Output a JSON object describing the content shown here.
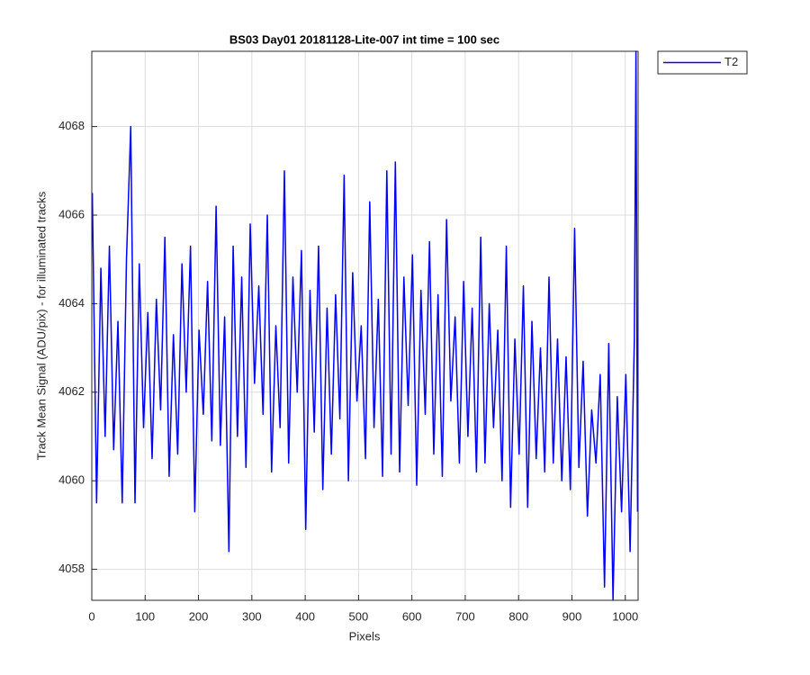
{
  "chart_data": {
    "type": "line",
    "title": "BS03 Day01 20181128-Lite-007 int time = 100 sec",
    "xlabel": "Pixels",
    "ylabel": "Track Mean Signal (ADU/pix) - for illuminated tracks",
    "xlim": [
      0,
      1024
    ],
    "ylim": [
      4057.3,
      4069.7
    ],
    "xticks": [
      0,
      100,
      200,
      300,
      400,
      500,
      600,
      700,
      800,
      900,
      1000
    ],
    "yticks": [
      4058,
      4060,
      4062,
      4064,
      4066,
      4068
    ],
    "grid": true,
    "legend": "northeastoutside",
    "x": [
      1,
      9,
      17,
      25,
      33,
      41,
      49,
      57,
      65,
      73,
      81,
      89,
      97,
      105,
      113,
      121,
      129,
      137,
      145,
      153,
      161,
      169,
      177,
      185,
      193,
      201,
      209,
      217,
      225,
      233,
      241,
      249,
      257,
      265,
      273,
      281,
      289,
      297,
      305,
      313,
      321,
      329,
      337,
      345,
      353,
      361,
      369,
      377,
      385,
      393,
      401,
      409,
      417,
      425,
      433,
      441,
      449,
      457,
      465,
      473,
      481,
      489,
      497,
      505,
      513,
      521,
      529,
      537,
      545,
      553,
      561,
      569,
      577,
      585,
      593,
      601,
      609,
      617,
      625,
      633,
      641,
      649,
      657,
      665,
      673,
      681,
      689,
      697,
      705,
      713,
      721,
      729,
      737,
      745,
      753,
      761,
      769,
      777,
      785,
      793,
      801,
      809,
      817,
      825,
      833,
      841,
      849,
      857,
      865,
      873,
      881,
      889,
      897,
      905,
      913,
      921,
      929,
      937,
      945,
      953,
      961,
      969,
      977,
      985,
      993,
      1001,
      1009,
      1017,
      1020,
      1023
    ],
    "series": [
      {
        "name": "T2",
        "color": "#0000ff",
        "values": [
          4066.5,
          4059.5,
          4064.8,
          4061.0,
          4065.3,
          4060.7,
          4063.6,
          4059.5,
          4065.0,
          4068.0,
          4059.5,
          4064.9,
          4061.2,
          4063.8,
          4060.5,
          4064.1,
          4061.6,
          4065.5,
          4060.1,
          4063.3,
          4060.6,
          4064.9,
          4062.0,
          4065.3,
          4059.3,
          4063.4,
          4061.5,
          4064.5,
          4060.9,
          4066.2,
          4060.8,
          4063.7,
          4058.4,
          4065.3,
          4061.0,
          4064.6,
          4060.3,
          4065.8,
          4062.2,
          4064.4,
          4061.5,
          4066.0,
          4060.2,
          4063.5,
          4061.2,
          4067.0,
          4060.4,
          4064.6,
          4062.0,
          4065.2,
          4058.9,
          4064.3,
          4061.1,
          4065.3,
          4059.8,
          4063.9,
          4060.6,
          4064.2,
          4061.4,
          4066.9,
          4060.0,
          4064.7,
          4061.8,
          4063.5,
          4060.5,
          4066.3,
          4061.2,
          4064.1,
          4060.1,
          4067.0,
          4060.6,
          4067.2,
          4060.2,
          4064.6,
          4061.7,
          4065.1,
          4059.9,
          4064.3,
          4061.5,
          4065.4,
          4060.6,
          4064.2,
          4060.1,
          4065.9,
          4061.8,
          4063.7,
          4060.4,
          4064.5,
          4061.0,
          4063.9,
          4060.2,
          4065.5,
          4060.4,
          4064.0,
          4061.2,
          4063.4,
          4060.0,
          4065.3,
          4059.4,
          4063.2,
          4060.6,
          4064.4,
          4059.4,
          4063.6,
          4060.5,
          4063.0,
          4060.2,
          4064.6,
          4060.4,
          4063.2,
          4060.0,
          4062.8,
          4059.8,
          4065.7,
          4060.3,
          4062.7,
          4059.2,
          4061.6,
          4060.4,
          4062.4,
          4057.6,
          4063.1,
          4057.3,
          4061.9,
          4059.3,
          4062.4,
          4058.4,
          4063.2,
          4069.7,
          4059.3
        ]
      }
    ]
  }
}
